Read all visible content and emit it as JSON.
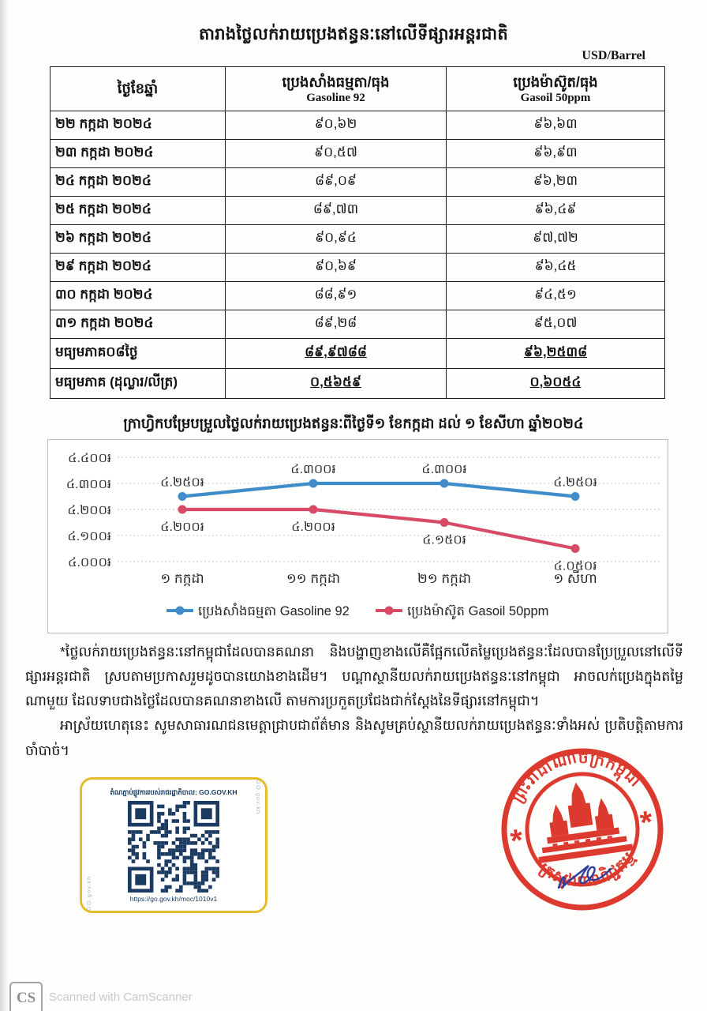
{
  "title": "តារាងថ្លៃលក់រាយប្រេងឥន្ធនៈនៅលើទីផ្សារអន្តរជាតិ",
  "unit_label": "USD/Barrel",
  "table": {
    "headers": {
      "date": "ថ្ងៃខែឆ្នាំ",
      "gasoline_kh": "ប្រេងសាំងធម្មតា/ធុង",
      "gasoline_en": "Gasoline 92",
      "gasoil_kh": "ប្រេងម៉ាស៊ូត/ធុង",
      "gasoil_en": "Gasoil 50ppm"
    },
    "rows": [
      {
        "date": "២២ កក្កដា ២០២៤",
        "gasoline": "៩០,៦២",
        "gasoil": "៩៦,៦៣"
      },
      {
        "date": "២៣ កក្កដា ២០២៤",
        "gasoline": "៩០,៥៧",
        "gasoil": "៩៦,៩៣"
      },
      {
        "date": "២៤ កក្កដា ២០២៤",
        "gasoline": "៨៩,០៩",
        "gasoil": "៩៦,២៣"
      },
      {
        "date": "២៥ កក្កដា ២០២៤",
        "gasoline": "៨៩,៧៣",
        "gasoil": "៩៦,៤៩"
      },
      {
        "date": "២៦ កក្កដា ២០២៤",
        "gasoline": "៩០,៩៤",
        "gasoil": "៩៧,៧២"
      },
      {
        "date": "២៩ កក្កដា ២០២៤",
        "gasoline": "៩០,៦៩",
        "gasoil": "៩៦,៤៥"
      },
      {
        "date": "៣០ កក្កដា ២០២៤",
        "gasoline": "៨៨,៩១",
        "gasoil": "៩៤,៥១"
      },
      {
        "date": "៣១ កក្កដា ២០២៤",
        "gasoline": "៨៩,២៨",
        "gasoil": "៩៥,០៧"
      }
    ],
    "summary_rows": [
      {
        "label": "មធ្យមភាគ០៨ថ្ងៃ",
        "gasoline": "៨៩,៩៧៨៨",
        "gasoil": "៩៦,២៥៣៨"
      },
      {
        "label": "មធ្យមភាគ (ដុល្លារ/លីត្រ)",
        "gasoline": "០,៥៦៥៩",
        "gasoil": "០,៦០៥៤"
      }
    ]
  },
  "chart_data": {
    "type": "line",
    "title": "ក្រាហ្វិកបម្រែបម្រួលថ្លៃលក់រាយប្រេងឥន្ធនៈពីថ្ងៃទី១ ខែកក្កដា ដល់ ១ ខែសីហា ឆ្នាំ២០២៤",
    "categories": [
      "១ កក្កដា",
      "១១ កក្កដា",
      "២១ កក្កដា",
      "១ សីហា"
    ],
    "series": [
      {
        "name": "ប្រេងសាំងធម្មតា Gasoline 92",
        "color": "#3f8dca",
        "values": [
          4250,
          4300,
          4300,
          4250
        ],
        "labels": [
          "៤.២៥០៛",
          "៤.៣០០៛",
          "៤.៣០០៛",
          "៤.២៥០៛"
        ]
      },
      {
        "name": "ប្រេងម៉ាស៊ូត Gasoil 50ppm",
        "color": "#d84b66",
        "values": [
          4200,
          4200,
          4150,
          4050
        ],
        "labels": [
          "៤.២០០៛",
          "៤.២០០៛",
          "៤.១៥០៛",
          "៤.០៥០៛"
        ]
      }
    ],
    "ylim": [
      4000,
      4400
    ],
    "yticks": [
      4000,
      4100,
      4200,
      4300,
      4400
    ],
    "ytick_labels": [
      "៤.០០០៛",
      "៤.១០០៛",
      "៤.២០០៛",
      "៤.៣០០៛",
      "៤.៤០០៛"
    ],
    "grid": true,
    "legend_position": "bottom"
  },
  "notes": {
    "p1": "*ថ្លៃលក់រាយប្រេងឥន្ធនៈនៅកម្ពុជាដែលបានគណនា និងបង្ហាញខាងលើគឺផ្អែកលើតម្លៃប្រេងឥន្ធនៈដែលបានប្រែប្រួលនៅលើទីផ្សារអន្តរជាតិ ស្របតាមប្រកាសរួមដូចបានយោងខាងដើម។ បណ្តាស្ថានីយលក់រាយប្រេងឥន្ធនៈនៅកម្ពុជា អាចលក់ប្រេងក្នុងតម្លៃណាមួយ ដែលទាបជាងថ្លៃដែលបានគណនាខាងលើ តាមការប្រកួតប្រជែងជាក់ស្តែងនៃទីផ្សារនៅកម្ពុជា។",
    "p2": "អាស្រ័យហេតុនេះ សូមសាធារណជនមេត្តាជ្រាបជាព័ត៌មាន និងសូមគ្រប់ស្ថានីយលក់រាយប្រេងឥន្ធនៈទាំងអស់ ប្រតិបត្តិតាមការចាំបាច់។"
  },
  "qr": {
    "header": "តំណភ្ជាប់ផ្លូវការរបស់រាជរដ្ឋាភិបាល: GO.GOV.KH",
    "url": "https://go.gov.kh/moc/1010v1",
    "side_text": "GO.gov.kh",
    "color": "#1c3b63",
    "frame_color": "#e4be2a"
  },
  "stamp": {
    "top_text": "ព្រះរាជាណាចក្រកម្ពុជា",
    "bottom_text": "ក្រសួងពាណិជ្ជកម្ម",
    "star": "*",
    "color": "#da2a1e"
  },
  "watermark": {
    "logo": "CS",
    "text": "Scanned with CamScanner"
  }
}
